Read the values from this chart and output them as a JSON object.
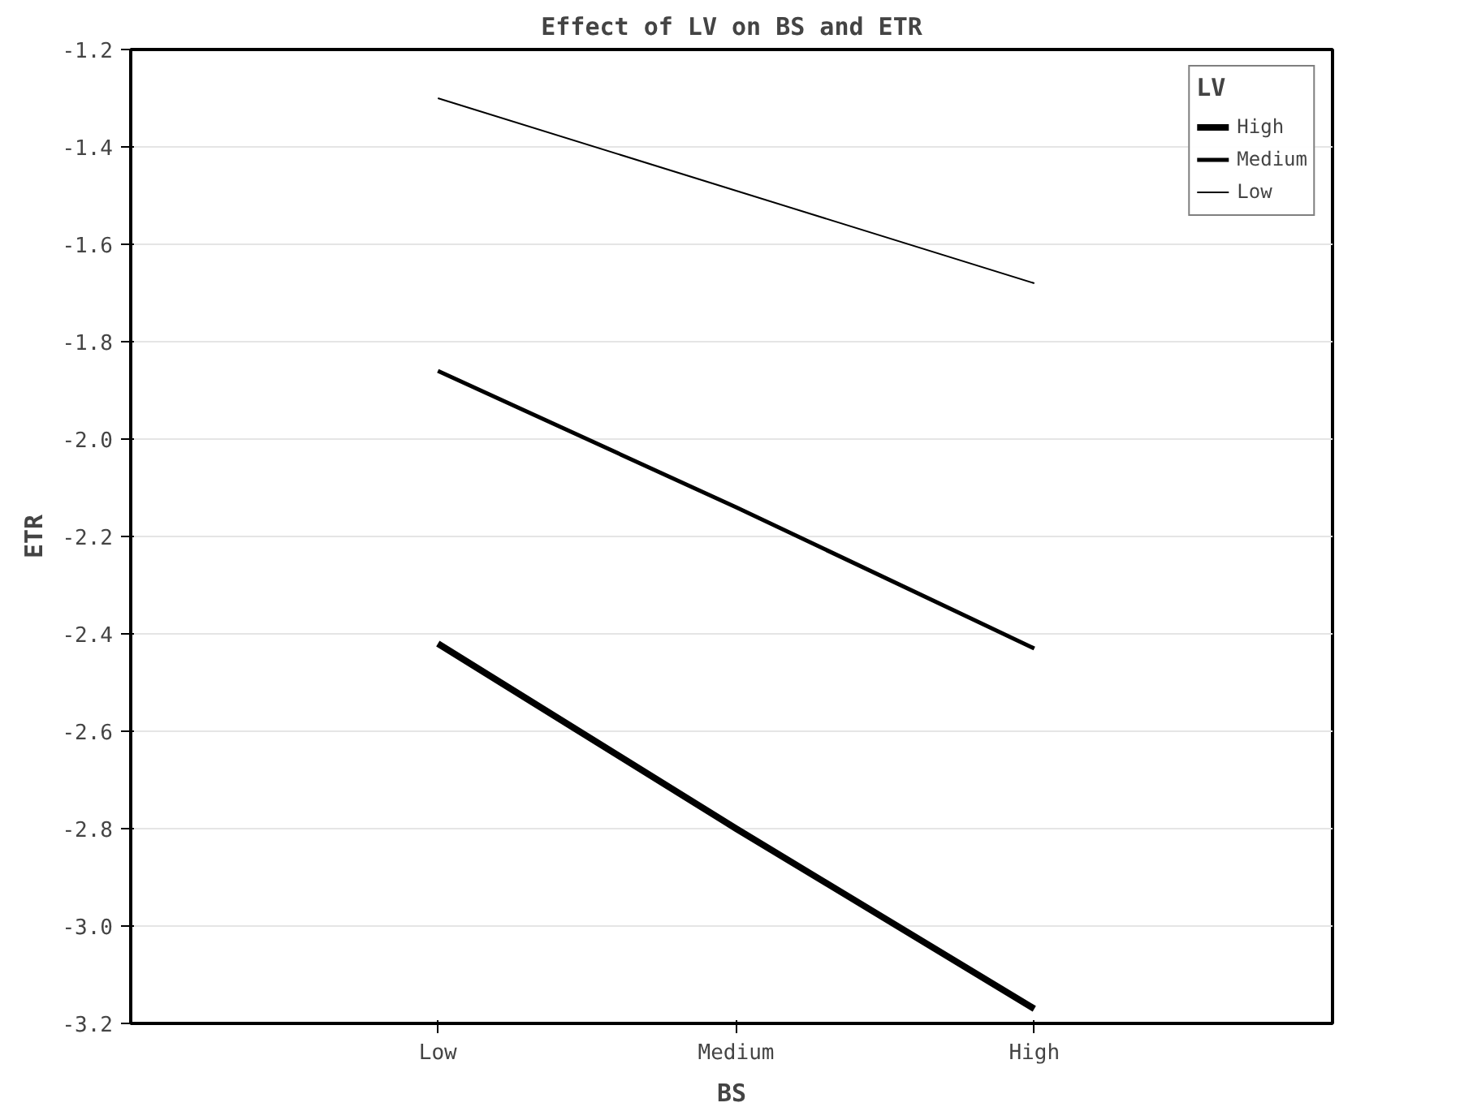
{
  "chart_data": {
    "type": "line",
    "title": "Effect of LV on BS and ETR",
    "xlabel": "BS",
    "ylabel": "ETR",
    "legend_title": "LV",
    "categories": [
      "Low",
      "Medium",
      "High"
    ],
    "series": [
      {
        "name": "High",
        "color": "#000000",
        "values": [
          -2.42,
          -2.8,
          -3.17
        ]
      },
      {
        "name": "Medium",
        "color": "#000000",
        "values": [
          -1.86,
          -2.14,
          -2.43
        ]
      },
      {
        "name": "Low",
        "color": "#000000",
        "values": [
          -1.3,
          -1.49,
          -1.68
        ]
      }
    ],
    "ylim": [
      -3.2,
      -1.2
    ],
    "yticks": [
      {
        "value": -3.2,
        "label": "-3.2"
      },
      {
        "value": -3.0,
        "label": "-3.0"
      },
      {
        "value": -2.8,
        "label": "-2.8"
      },
      {
        "value": -2.6,
        "label": "-2.6"
      },
      {
        "value": -2.4,
        "label": "-2.4"
      },
      {
        "value": -2.2,
        "label": "-2.2"
      },
      {
        "value": -2.0,
        "label": "-2.0"
      },
      {
        "value": -1.8,
        "label": "-1.8"
      },
      {
        "value": -1.6,
        "label": "-1.6"
      },
      {
        "value": -1.4,
        "label": "-1.4"
      },
      {
        "value": -1.2,
        "label": "-1.2"
      }
    ],
    "grid": "y",
    "legend": "top right",
    "marker": "none",
    "line_style": "solid"
  }
}
